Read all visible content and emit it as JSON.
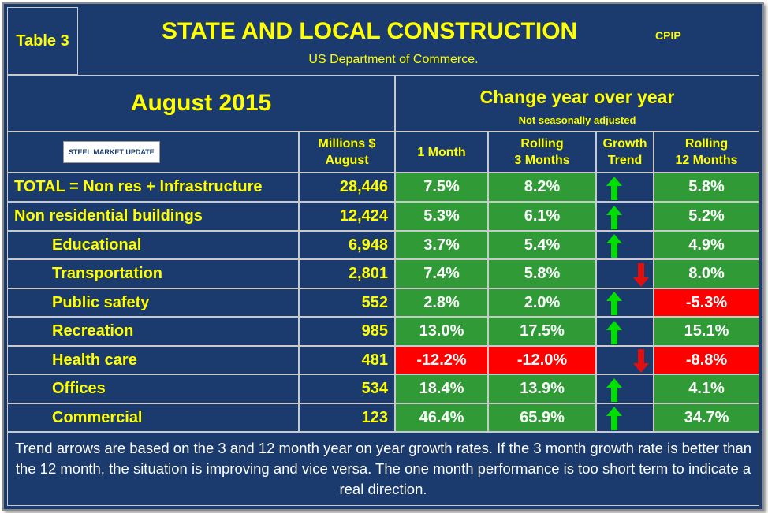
{
  "header": {
    "table_label": "Table 3",
    "title": "STATE AND LOCAL CONSTRUCTION",
    "tag": "CPIP",
    "subtitle": "US Department of Commerce."
  },
  "period": "August 2015",
  "change_header": "Change year over year",
  "change_note": "Not seasonally adjusted",
  "logo": "STEEL MARKET UPDATE",
  "columns": [
    [
      "Millions $",
      "August"
    ],
    [
      "1 Month"
    ],
    [
      "Rolling",
      "3 Months"
    ],
    [
      "Growth",
      "Trend"
    ],
    [
      "Rolling",
      "12 Months"
    ]
  ],
  "rows": [
    {
      "label": "TOTAL = Non res + Infrastructure",
      "level": 0,
      "millions": "28,446",
      "m1": "7.5%",
      "r3": "8.2%",
      "trend": "up",
      "r12": "5.8%"
    },
    {
      "label": "Non residential buildings",
      "level": 0,
      "millions": "12,424",
      "m1": "5.3%",
      "r3": "6.1%",
      "trend": "up",
      "r12": "5.2%"
    },
    {
      "label": "Educational",
      "level": 1,
      "millions": "6,948",
      "m1": "3.7%",
      "r3": "5.4%",
      "trend": "up",
      "r12": "4.9%"
    },
    {
      "label": "Transportation",
      "level": 1,
      "millions": "2,801",
      "m1": "7.4%",
      "r3": "5.8%",
      "trend": "down",
      "r12": "8.0%"
    },
    {
      "label": "Public safety",
      "level": 1,
      "millions": "552",
      "m1": "2.8%",
      "r3": "2.0%",
      "trend": "up",
      "r12": "-5.3%"
    },
    {
      "label": "Recreation",
      "level": 1,
      "millions": "985",
      "m1": "13.0%",
      "r3": "17.5%",
      "trend": "up",
      "r12": "15.1%"
    },
    {
      "label": "Health care",
      "level": 1,
      "millions": "481",
      "m1": "-12.2%",
      "r3": "-12.0%",
      "trend": "down",
      "r12": "-8.8%"
    },
    {
      "label": "Offices",
      "level": 1,
      "millions": "534",
      "m1": "18.4%",
      "r3": "13.9%",
      "trend": "up",
      "r12": "4.1%"
    },
    {
      "label": "Commercial",
      "level": 1,
      "millions": "123",
      "m1": "46.4%",
      "r3": "65.9%",
      "trend": "up",
      "r12": "34.7%"
    }
  ],
  "footnote": "Trend arrows are based on the 3 and 12 month year on year growth rates. If the 3 month growth rate is better than the 12 month, the situation is improving and vice versa. The one month performance is too short term to indicate a real direction."
}
